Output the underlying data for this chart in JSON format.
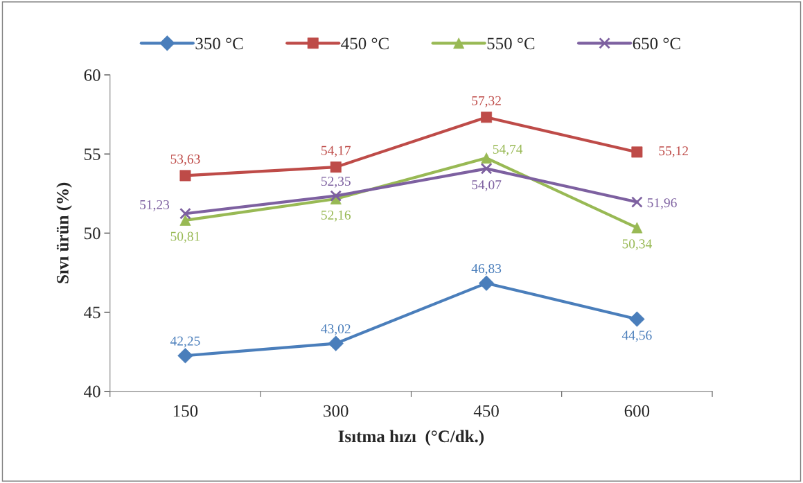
{
  "chart_data": {
    "type": "line",
    "xlabel": "Isıtma hızı  (°C/dk.)",
    "ylabel": "Sıvı ürün (%)",
    "categories": [
      "150",
      "300",
      "450",
      "600"
    ],
    "ylim": [
      40,
      60
    ],
    "yticks": [
      40,
      45,
      50,
      55,
      60
    ],
    "grid": false,
    "legend": "top",
    "series": [
      {
        "name": "350 °C",
        "color": "#4a7ebb",
        "marker": "diamond",
        "values": [
          42.25,
          43.02,
          46.83,
          44.56
        ],
        "value_labels": [
          "42,25",
          "43,02",
          "46,83",
          "44,56"
        ]
      },
      {
        "name": "450 °C",
        "color": "#be4b48",
        "marker": "square",
        "values": [
          53.63,
          54.17,
          57.32,
          55.12
        ],
        "value_labels": [
          "53,63",
          "54,17",
          "57,32",
          "55,12"
        ]
      },
      {
        "name": "550 °C",
        "color": "#98b954",
        "marker": "triangle",
        "values": [
          50.81,
          52.16,
          54.74,
          50.34
        ],
        "value_labels": [
          "50,81",
          "52,16",
          "54,74",
          "50,34"
        ]
      },
      {
        "name": "650 °C",
        "color": "#7d60a0",
        "marker": "cross",
        "values": [
          51.23,
          52.35,
          54.07,
          51.96
        ],
        "value_labels": [
          "51,23",
          "52,35",
          "54,07",
          "51,96"
        ]
      }
    ]
  }
}
